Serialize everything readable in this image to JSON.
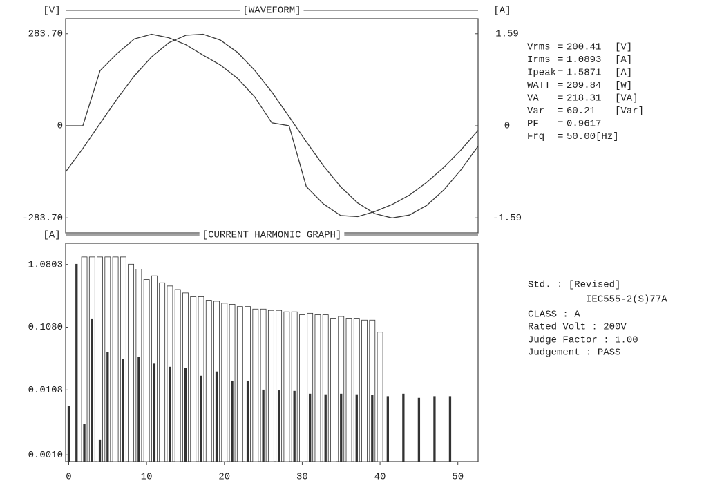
{
  "chart_data": [
    {
      "type": "line",
      "title": "[WAVEFORM]",
      "ylabel": "[V]",
      "y2label": "[A]",
      "ylim": [
        -330,
        330
      ],
      "yticks": [
        {
          "value": 283.7,
          "label": "283.70"
        },
        0,
        {
          "value": -283.7,
          "label": "-283.70"
        }
      ],
      "y2lim": [
        -1.85,
        1.85
      ],
      "y2ticks": [
        1.59,
        0,
        -1.59
      ],
      "series": [
        {
          "color": "#3a3a3a",
          "values": [
            -142,
            -70,
            7,
            83,
            154,
            212,
            256,
            279,
            282,
            264,
            226,
            171,
            104,
            28,
            -49,
            -123,
            -188,
            -238,
            -271,
            -284,
            -275,
            -246,
            -198,
            -136,
            -63
          ]
        },
        {
          "color": "#3a3a3a",
          "axis": "y2",
          "values": [
            0,
            0,
            0.95,
            1.25,
            1.5,
            1.58,
            1.52,
            1.4,
            1.22,
            1.05,
            0.82,
            0.5,
            0.05,
            0,
            -1.05,
            -1.35,
            -1.55,
            -1.57,
            -1.48,
            -1.36,
            -1.2,
            -0.98,
            -0.72,
            -0.42,
            -0.08
          ]
        }
      ]
    },
    {
      "type": "bar",
      "title": "[CURRENT HARMONIC GRAPH]",
      "ylabel": "[A]",
      "yscale": "log",
      "ylim": [
        0.00078,
        2.35
      ],
      "yticks": [
        1.0803,
        {
          "value": 0.108,
          "label": "0.1080"
        },
        0.0108,
        {
          "value": 0.001,
          "label": "0.0010"
        }
      ],
      "xlim": [
        -0.4,
        52.6
      ],
      "xticks": [
        0,
        10,
        20,
        30,
        40,
        50
      ],
      "series": [
        {
          "color": "#ffffff",
          "x": [
            2,
            3,
            4,
            5,
            6,
            7,
            8,
            9,
            10,
            11,
            12,
            13,
            14,
            15,
            16,
            17,
            18,
            19,
            20,
            21,
            22,
            23,
            24,
            25,
            26,
            27,
            28,
            29,
            30,
            31,
            32,
            33,
            34,
            35,
            36,
            37,
            38,
            39,
            40
          ],
          "values": [
            1.42,
            1.42,
            1.42,
            1.42,
            1.42,
            1.42,
            1.09,
            0.91,
            0.62,
            0.71,
            0.55,
            0.49,
            0.43,
            0.38,
            0.33,
            0.33,
            0.29,
            0.28,
            0.26,
            0.25,
            0.23,
            0.23,
            0.21,
            0.21,
            0.2,
            0.2,
            0.19,
            0.19,
            0.17,
            0.18,
            0.17,
            0.17,
            0.15,
            0.16,
            0.15,
            0.15,
            0.14,
            0.14,
            0.09
          ]
        },
        {
          "color": "#333333",
          "x": [
            0,
            1,
            2,
            3,
            4,
            5,
            7,
            9,
            11,
            13,
            15,
            17,
            19,
            21,
            23,
            25,
            27,
            29,
            31,
            33,
            35,
            37,
            39,
            41,
            43,
            45,
            47,
            49
          ],
          "values": [
            0.0059,
            1.0893,
            0.0031,
            0.147,
            0.0017,
            0.043,
            0.033,
            0.036,
            0.028,
            0.025,
            0.024,
            0.018,
            0.021,
            0.015,
            0.015,
            0.0108,
            0.0105,
            0.0103,
            0.0093,
            0.0091,
            0.0093,
            0.0091,
            0.0089,
            0.0085,
            0.0093,
            0.008,
            0.0085,
            0.0085
          ]
        }
      ]
    }
  ],
  "readings": [
    {
      "label": "Vrms",
      "sep": "=",
      "value": "200.41",
      "unit": "[V]"
    },
    {
      "label": "Irms",
      "sep": "=",
      "value": "1.0893",
      "unit": "[A]"
    },
    {
      "label": "Ipeak",
      "sep": "=",
      "value": "1.5871",
      "unit": "[A]"
    },
    {
      "label": "WATT",
      "sep": "=",
      "value": "209.84",
      "unit": "[W]"
    },
    {
      "label": "VA",
      "sep": "=",
      "value": "218.31",
      "unit": "[VA]"
    },
    {
      "label": "Var",
      "sep": "=",
      "value": "60.21",
      "unit": "[Var]"
    },
    {
      "label": "PF",
      "sep": "=",
      "value": "0.9617"
    },
    {
      "label": "Frq",
      "sep": "=",
      "value": "50.00[Hz]"
    }
  ],
  "standard": [
    "Std. : [Revised]",
    "IEC555-2(S)77A",
    "CLASS : A",
    "Rated Volt : 200V",
    "Judge Factor : 1.00",
    "Judgement : PASS"
  ]
}
